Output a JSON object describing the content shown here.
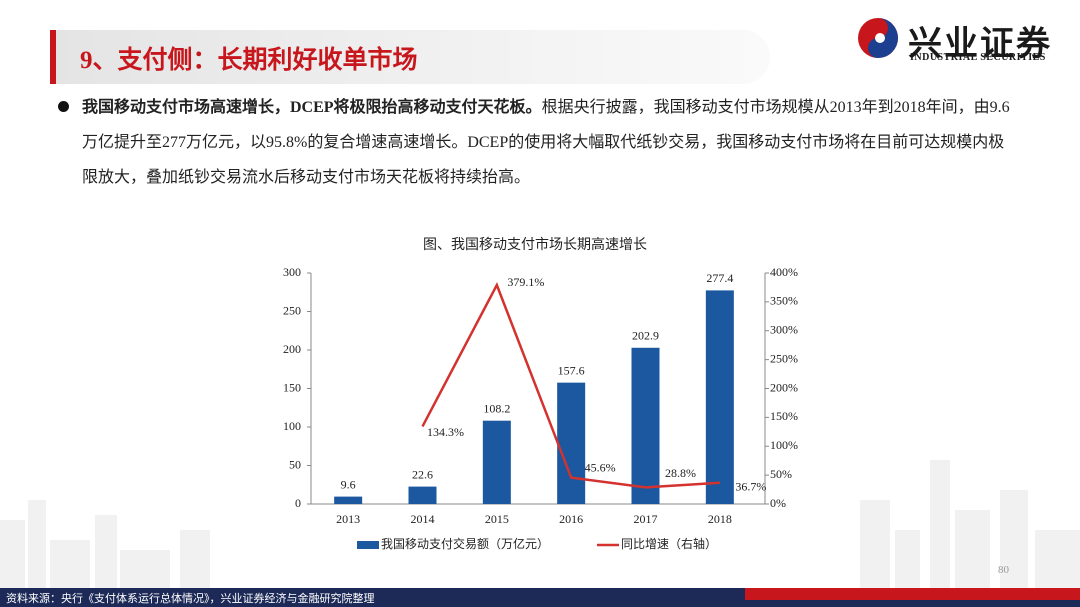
{
  "header": {
    "title": "9、支付侧：长期利好收单市场"
  },
  "logo": {
    "name": "兴业证券",
    "english": "INDUSTRIAL SECURITIES"
  },
  "bullet": {
    "bold": "我国移动支付市场高速增长，DCEP将极限抬高移动支付天花板。",
    "text": "根据央行披露，我国移动支付市场规模从2013年到2018年间，由9.6万亿提升至277万亿元，以95.8%的复合增速高速增长。DCEP的使用将大幅取代纸钞交易，我国移动支付市场将在目前可达规模内极限放大，叠加纸钞交易流水后移动支付市场天花板将持续抬高。"
  },
  "chart_data": {
    "type": "bar",
    "title": "图、我国移动支付市场长期高速增长",
    "categories": [
      "2013",
      "2014",
      "2015",
      "2016",
      "2017",
      "2018"
    ],
    "series": [
      {
        "name": "我国移动支付交易额（万亿元）",
        "type": "bar",
        "color": "#1b589f",
        "values": [
          9.6,
          22.6,
          108.2,
          157.6,
          202.9,
          277.4
        ]
      },
      {
        "name": "同比增速（右轴）",
        "type": "line",
        "axis": "y2",
        "color": "#d3322e",
        "values": [
          null,
          134.3,
          379.1,
          45.6,
          28.8,
          36.7
        ],
        "value_labels": [
          null,
          "134.3%",
          "379.1%",
          "45.6%",
          "28.8%",
          "36.7%"
        ]
      }
    ],
    "ylim": [
      0,
      300
    ],
    "yticks": [
      0,
      50,
      100,
      150,
      200,
      250,
      300
    ],
    "y2lim": [
      0,
      400
    ],
    "y2ticks": [
      {
        "value": 0,
        "label": "0%"
      },
      {
        "value": 50,
        "label": "50%"
      },
      {
        "value": 100,
        "label": "100%"
      },
      {
        "value": 150,
        "label": "150%"
      },
      {
        "value": 200,
        "label": "200%"
      },
      {
        "value": 250,
        "label": "250%"
      },
      {
        "value": 300,
        "label": "300%"
      },
      {
        "value": 350,
        "label": "350%"
      },
      {
        "value": 400,
        "label": "400%"
      }
    ],
    "legend": "bottom"
  },
  "footer": {
    "source": "资料来源：央行《支付体系运行总体情况》，兴业证券经济与金融研究院整理"
  },
  "page_number": "80"
}
